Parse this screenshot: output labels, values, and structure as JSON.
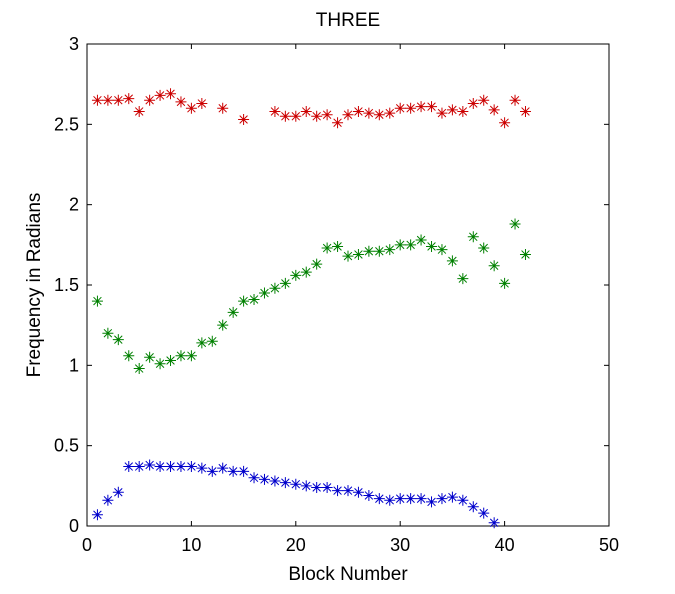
{
  "chart_data": {
    "type": "scatter",
    "title": "THREE",
    "xlabel": "Block Number",
    "ylabel": "Frequency in Radians",
    "xlim": [
      0,
      50
    ],
    "ylim": [
      0,
      3
    ],
    "xticks": [
      0,
      10,
      20,
      30,
      40,
      50
    ],
    "yticks": [
      0,
      0.5,
      1,
      1.5,
      2,
      2.5,
      3
    ],
    "xtick_labels": [
      "0",
      "10",
      "20",
      "30",
      "40",
      "50"
    ],
    "ytick_labels": [
      "0",
      "0.5",
      "1",
      "1.5",
      "2",
      "2.5",
      "3"
    ],
    "grid": false,
    "marker": "asterisk",
    "series": [
      {
        "color": "#cc0000",
        "points": [
          [
            1,
            2.65
          ],
          [
            2,
            2.65
          ],
          [
            3,
            2.65
          ],
          [
            4,
            2.66
          ],
          [
            5,
            2.58
          ],
          [
            6,
            2.65
          ],
          [
            7,
            2.68
          ],
          [
            8,
            2.69
          ],
          [
            9,
            2.64
          ],
          [
            10,
            2.6
          ],
          [
            11,
            2.63
          ],
          [
            13,
            2.6
          ],
          [
            15,
            2.53
          ],
          [
            18,
            2.58
          ],
          [
            19,
            2.55
          ],
          [
            20,
            2.55
          ],
          [
            21,
            2.58
          ],
          [
            22,
            2.55
          ],
          [
            23,
            2.56
          ],
          [
            24,
            2.51
          ],
          [
            25,
            2.56
          ],
          [
            26,
            2.58
          ],
          [
            27,
            2.57
          ],
          [
            28,
            2.56
          ],
          [
            29,
            2.57
          ],
          [
            30,
            2.6
          ],
          [
            31,
            2.6
          ],
          [
            32,
            2.61
          ],
          [
            33,
            2.61
          ],
          [
            34,
            2.57
          ],
          [
            35,
            2.59
          ],
          [
            36,
            2.58
          ],
          [
            37,
            2.63
          ],
          [
            38,
            2.65
          ],
          [
            39,
            2.59
          ],
          [
            40,
            2.51
          ],
          [
            41,
            2.65
          ],
          [
            42,
            2.58
          ]
        ]
      },
      {
        "color": "#008000",
        "points": [
          [
            1,
            1.4
          ],
          [
            2,
            1.2
          ],
          [
            3,
            1.16
          ],
          [
            4,
            1.06
          ],
          [
            5,
            0.98
          ],
          [
            6,
            1.05
          ],
          [
            7,
            1.01
          ],
          [
            8,
            1.03
          ],
          [
            9,
            1.06
          ],
          [
            10,
            1.06
          ],
          [
            11,
            1.14
          ],
          [
            12,
            1.15
          ],
          [
            13,
            1.25
          ],
          [
            14,
            1.33
          ],
          [
            15,
            1.4
          ],
          [
            16,
            1.41
          ],
          [
            17,
            1.45
          ],
          [
            18,
            1.48
          ],
          [
            19,
            1.51
          ],
          [
            20,
            1.56
          ],
          [
            21,
            1.58
          ],
          [
            22,
            1.63
          ],
          [
            23,
            1.73
          ],
          [
            24,
            1.74
          ],
          [
            25,
            1.68
          ],
          [
            26,
            1.69
          ],
          [
            27,
            1.71
          ],
          [
            28,
            1.71
          ],
          [
            29,
            1.72
          ],
          [
            30,
            1.75
          ],
          [
            31,
            1.75
          ],
          [
            32,
            1.78
          ],
          [
            33,
            1.74
          ],
          [
            34,
            1.72
          ],
          [
            35,
            1.65
          ],
          [
            36,
            1.54
          ],
          [
            37,
            1.8
          ],
          [
            38,
            1.73
          ],
          [
            39,
            1.62
          ],
          [
            40,
            1.51
          ],
          [
            41,
            1.88
          ],
          [
            42,
            1.69
          ]
        ]
      },
      {
        "color": "#0000cc",
        "points": [
          [
            1,
            0.07
          ],
          [
            2,
            0.16
          ],
          [
            3,
            0.21
          ],
          [
            4,
            0.37
          ],
          [
            5,
            0.37
          ],
          [
            6,
            0.38
          ],
          [
            7,
            0.37
          ],
          [
            8,
            0.37
          ],
          [
            9,
            0.37
          ],
          [
            10,
            0.37
          ],
          [
            11,
            0.36
          ],
          [
            12,
            0.34
          ],
          [
            13,
            0.36
          ],
          [
            14,
            0.34
          ],
          [
            15,
            0.34
          ],
          [
            16,
            0.3
          ],
          [
            17,
            0.29
          ],
          [
            18,
            0.28
          ],
          [
            19,
            0.27
          ],
          [
            20,
            0.26
          ],
          [
            21,
            0.25
          ],
          [
            22,
            0.24
          ],
          [
            23,
            0.24
          ],
          [
            24,
            0.22
          ],
          [
            25,
            0.22
          ],
          [
            26,
            0.21
          ],
          [
            27,
            0.19
          ],
          [
            28,
            0.17
          ],
          [
            29,
            0.16
          ],
          [
            30,
            0.17
          ],
          [
            31,
            0.17
          ],
          [
            32,
            0.17
          ],
          [
            33,
            0.15
          ],
          [
            34,
            0.17
          ],
          [
            35,
            0.18
          ],
          [
            36,
            0.16
          ],
          [
            37,
            0.12
          ],
          [
            38,
            0.08
          ],
          [
            39,
            0.02
          ]
        ]
      }
    ]
  }
}
